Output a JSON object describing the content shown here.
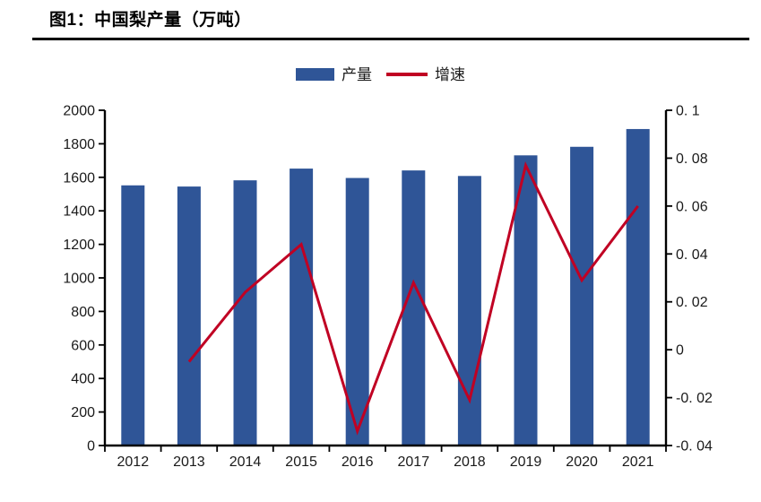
{
  "title": "图1：中国梨产量（万吨）",
  "legend": {
    "bar_label": "产量",
    "line_label": "增速"
  },
  "chart_data": {
    "type": "bar+line combo",
    "title": "图1：中国梨产量（万吨）",
    "categories": [
      "2012",
      "2013",
      "2014",
      "2015",
      "2016",
      "2017",
      "2018",
      "2019",
      "2020",
      "2021"
    ],
    "series": [
      {
        "name": "产量",
        "type": "bar",
        "axis": "left",
        "values": [
          1552,
          1545,
          1582,
          1652,
          1596,
          1641,
          1608,
          1731,
          1782,
          1888
        ]
      },
      {
        "name": "增速",
        "type": "line",
        "axis": "right",
        "values": [
          null,
          -0.005,
          0.024,
          0.044,
          -0.034,
          0.028,
          -0.021,
          0.077,
          0.029,
          0.06
        ]
      }
    ],
    "left_axis": {
      "min": 0,
      "max": 2000,
      "ticks": [
        {
          "value": 0,
          "label": "0"
        },
        {
          "value": 200,
          "label": "200"
        },
        {
          "value": 400,
          "label": "400"
        },
        {
          "value": 600,
          "label": "600"
        },
        {
          "value": 800,
          "label": "800"
        },
        {
          "value": 1000,
          "label": "1000"
        },
        {
          "value": 1200,
          "label": "1200"
        },
        {
          "value": 1400,
          "label": "1400"
        },
        {
          "value": 1600,
          "label": "1600"
        },
        {
          "value": 1800,
          "label": "1800"
        },
        {
          "value": 2000,
          "label": "2000"
        }
      ]
    },
    "right_axis": {
      "min": -0.04,
      "max": 0.1,
      "ticks": [
        {
          "value": -0.04,
          "label": "-0. 04"
        },
        {
          "value": -0.02,
          "label": "-0. 02"
        },
        {
          "value": 0,
          "label": "0"
        },
        {
          "value": 0.02,
          "label": "0. 02"
        },
        {
          "value": 0.04,
          "label": "0. 04"
        },
        {
          "value": 0.06,
          "label": "0. 06"
        },
        {
          "value": 0.08,
          "label": "0. 08"
        },
        {
          "value": 0.1,
          "label": "0. 1"
        }
      ]
    },
    "colors": {
      "bar": "#2F5597",
      "line": "#C00023",
      "axis": "#000000",
      "text": "#1a1a1a"
    },
    "legend_position": "top-center",
    "grid": false
  }
}
